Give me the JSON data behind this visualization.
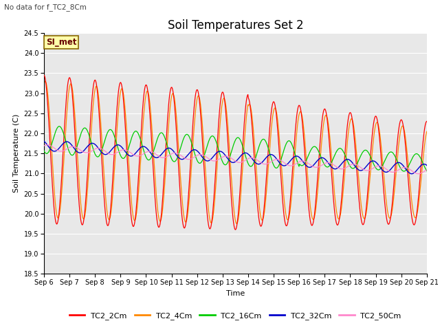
{
  "title": "Soil Temperatures Set 2",
  "no_data_text": "No data for f_TC2_8Cm",
  "si_met_label": "SI_met",
  "ylabel": "Soil Temperature (C)",
  "xlabel": "Time",
  "ylim": [
    18.5,
    24.5
  ],
  "yticks": [
    18.5,
    19.0,
    19.5,
    20.0,
    20.5,
    21.0,
    21.5,
    22.0,
    22.5,
    23.0,
    23.5,
    24.0,
    24.5
  ],
  "xtick_labels": [
    "Sep 6",
    "Sep 7",
    "Sep 8",
    "Sep 9",
    "Sep 10",
    "Sep 11",
    "Sep 12",
    "Sep 13",
    "Sep 14",
    "Sep 15",
    "Sep 16",
    "Sep 17",
    "Sep 18",
    "Sep 19",
    "Sep 20",
    "Sep 21"
  ],
  "line_colors": {
    "TC2_2Cm": "#ff0000",
    "TC2_4Cm": "#ff8800",
    "TC2_16Cm": "#00cc00",
    "TC2_32Cm": "#0000cc",
    "TC2_50Cm": "#ff88cc"
  },
  "background_color": "#e8e8e8",
  "fig_background": "#ffffff",
  "title_fontsize": 12,
  "axis_fontsize": 8,
  "tick_fontsize": 7,
  "legend_fontsize": 8
}
